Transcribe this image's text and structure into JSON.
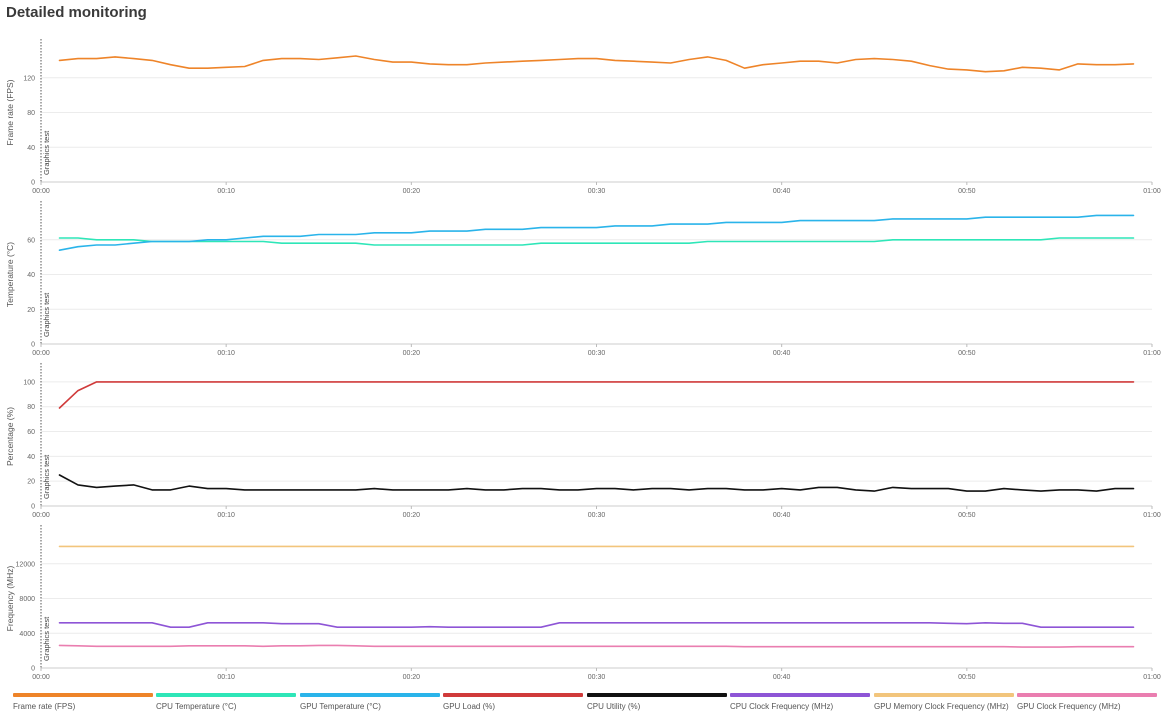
{
  "page": {
    "title": "Detailed monitoring"
  },
  "legend": [
    {
      "label": "Frame rate (FPS)",
      "color": "#ee8429"
    },
    {
      "label": "CPU Temperature (°C)",
      "color": "#2ee6b8"
    },
    {
      "label": "GPU Temperature (°C)",
      "color": "#2ab4ea"
    },
    {
      "label": "GPU Load (%)",
      "color": "#d03a3a"
    },
    {
      "label": "CPU Utility (%)",
      "color": "#111111"
    },
    {
      "label": "CPU Clock Frequency (MHz)",
      "color": "#8e55d6"
    },
    {
      "label": "GPU Memory Clock Frequency (MHz)",
      "color": "#f2c57c"
    },
    {
      "label": "GPU Clock Frequency (MHz)",
      "color": "#ea7eb0"
    }
  ],
  "chart_data": [
    {
      "type": "line",
      "title": "",
      "xlabel": "",
      "ylabel": "Frame rate (FPS)",
      "annotation": "Graphics test",
      "xlim": [
        0,
        60
      ],
      "ylim": [
        0,
        160
      ],
      "yticks": [
        0,
        40,
        80,
        120
      ],
      "xticks": [
        "00:00",
        "00:10",
        "00:20",
        "00:30",
        "00:40",
        "00:50",
        "01:00"
      ],
      "grid": true,
      "series": [
        {
          "color": "#ee8429",
          "x": [
            1,
            2,
            3,
            4,
            5,
            6,
            7,
            8,
            9,
            10,
            11,
            12,
            13,
            14,
            15,
            16,
            17,
            18,
            19,
            20,
            21,
            22,
            23,
            24,
            25,
            26,
            27,
            28,
            29,
            30,
            31,
            32,
            33,
            34,
            35,
            36,
            37,
            38,
            39,
            40,
            41,
            42,
            43,
            44,
            45,
            46,
            47,
            48,
            49,
            50,
            51,
            52,
            53,
            54,
            55,
            56,
            57,
            58,
            59
          ],
          "values": [
            140,
            142,
            142,
            144,
            142,
            140,
            135,
            131,
            131,
            132,
            133,
            140,
            142,
            142,
            141,
            143,
            145,
            141,
            138,
            138,
            136,
            135,
            135,
            137,
            138,
            139,
            140,
            141,
            142,
            142,
            140,
            139,
            138,
            137,
            141,
            144,
            140,
            131,
            135,
            137,
            139,
            139,
            137,
            141,
            142,
            141,
            139,
            134,
            130,
            129,
            127,
            128,
            132,
            131,
            129,
            136,
            135,
            135,
            136
          ]
        }
      ]
    },
    {
      "type": "line",
      "title": "",
      "xlabel": "",
      "ylabel": "Temperature (°C)",
      "annotation": "Graphics test",
      "xlim": [
        0,
        60
      ],
      "ylim": [
        0,
        80
      ],
      "yticks": [
        0,
        20,
        40,
        60
      ],
      "xticks": [
        "00:00",
        "00:10",
        "00:20",
        "00:30",
        "00:40",
        "00:50",
        "01:00"
      ],
      "grid": true,
      "series": [
        {
          "color": "#2ee6b8",
          "x": [
            1,
            2,
            3,
            4,
            5,
            6,
            7,
            8,
            9,
            10,
            11,
            12,
            13,
            14,
            15,
            16,
            17,
            18,
            19,
            20,
            21,
            22,
            23,
            24,
            25,
            26,
            27,
            28,
            29,
            30,
            31,
            32,
            33,
            34,
            35,
            36,
            37,
            38,
            39,
            40,
            41,
            42,
            43,
            44,
            45,
            46,
            47,
            48,
            49,
            50,
            51,
            52,
            53,
            54,
            55,
            56,
            57,
            58,
            59
          ],
          "values": [
            61,
            61,
            60,
            60,
            60,
            59,
            59,
            59,
            59,
            59,
            59,
            59,
            58,
            58,
            58,
            58,
            58,
            57,
            57,
            57,
            57,
            57,
            57,
            57,
            57,
            57,
            58,
            58,
            58,
            58,
            58,
            58,
            58,
            58,
            58,
            59,
            59,
            59,
            59,
            59,
            59,
            59,
            59,
            59,
            59,
            60,
            60,
            60,
            60,
            60,
            60,
            60,
            60,
            60,
            61,
            61,
            61,
            61,
            61
          ]
        },
        {
          "color": "#2ab4ea",
          "x": [
            1,
            2,
            3,
            4,
            5,
            6,
            7,
            8,
            9,
            10,
            11,
            12,
            13,
            14,
            15,
            16,
            17,
            18,
            19,
            20,
            21,
            22,
            23,
            24,
            25,
            26,
            27,
            28,
            29,
            30,
            31,
            32,
            33,
            34,
            35,
            36,
            37,
            38,
            39,
            40,
            41,
            42,
            43,
            44,
            45,
            46,
            47,
            48,
            49,
            50,
            51,
            52,
            53,
            54,
            55,
            56,
            57,
            58,
            59
          ],
          "values": [
            54,
            56,
            57,
            57,
            58,
            59,
            59,
            59,
            60,
            60,
            61,
            62,
            62,
            62,
            63,
            63,
            63,
            64,
            64,
            64,
            65,
            65,
            65,
            66,
            66,
            66,
            67,
            67,
            67,
            67,
            68,
            68,
            68,
            69,
            69,
            69,
            70,
            70,
            70,
            70,
            71,
            71,
            71,
            71,
            71,
            72,
            72,
            72,
            72,
            72,
            73,
            73,
            73,
            73,
            73,
            73,
            74,
            74,
            74
          ]
        }
      ]
    },
    {
      "type": "line",
      "title": "",
      "xlabel": "",
      "ylabel": "Percentage (%)",
      "annotation": "Graphics test",
      "xlim": [
        0,
        60
      ],
      "ylim": [
        0,
        112
      ],
      "yticks": [
        0,
        20,
        40,
        60,
        80,
        100
      ],
      "xticks": [
        "00:00",
        "00:10",
        "00:20",
        "00:30",
        "00:40",
        "00:50",
        "01:00"
      ],
      "grid": true,
      "series": [
        {
          "color": "#d03a3a",
          "x": [
            1,
            2,
            3,
            4,
            5,
            6,
            7,
            8,
            9,
            10,
            11,
            12,
            13,
            14,
            15,
            16,
            17,
            18,
            19,
            20,
            21,
            22,
            23,
            24,
            25,
            26,
            27,
            28,
            29,
            30,
            31,
            32,
            33,
            34,
            35,
            36,
            37,
            38,
            39,
            40,
            41,
            42,
            43,
            44,
            45,
            46,
            47,
            48,
            49,
            50,
            51,
            52,
            53,
            54,
            55,
            56,
            57,
            58,
            59
          ],
          "values": [
            79,
            93,
            100,
            100,
            100,
            100,
            100,
            100,
            100,
            100,
            100,
            100,
            100,
            100,
            100,
            100,
            100,
            100,
            100,
            100,
            100,
            100,
            100,
            100,
            100,
            100,
            100,
            100,
            100,
            100,
            100,
            100,
            100,
            100,
            100,
            100,
            100,
            100,
            100,
            100,
            100,
            100,
            100,
            100,
            100,
            100,
            100,
            100,
            100,
            100,
            100,
            100,
            100,
            100,
            100,
            100,
            100,
            100,
            100
          ]
        },
        {
          "color": "#111111",
          "x": [
            1,
            2,
            3,
            4,
            5,
            6,
            7,
            8,
            9,
            10,
            11,
            12,
            13,
            14,
            15,
            16,
            17,
            18,
            19,
            20,
            21,
            22,
            23,
            24,
            25,
            26,
            27,
            28,
            29,
            30,
            31,
            32,
            33,
            34,
            35,
            36,
            37,
            38,
            39,
            40,
            41,
            42,
            43,
            44,
            45,
            46,
            47,
            48,
            49,
            50,
            51,
            52,
            53,
            54,
            55,
            56,
            57,
            58,
            59
          ],
          "values": [
            25,
            17,
            15,
            16,
            17,
            13,
            13,
            16,
            14,
            14,
            13,
            13,
            13,
            13,
            13,
            13,
            13,
            14,
            13,
            13,
            13,
            13,
            14,
            13,
            13,
            14,
            14,
            13,
            13,
            14,
            14,
            13,
            14,
            14,
            13,
            14,
            14,
            13,
            13,
            14,
            13,
            15,
            15,
            13,
            12,
            15,
            14,
            14,
            14,
            12,
            12,
            14,
            13,
            12,
            13,
            13,
            12,
            14,
            14
          ]
        }
      ]
    },
    {
      "type": "line",
      "title": "",
      "xlabel": "",
      "ylabel": "Frequency (MHz)",
      "annotation": "Graphics test",
      "xlim": [
        0,
        60
      ],
      "ylim": [
        0,
        16000
      ],
      "yticks": [
        0,
        4000,
        8000,
        12000
      ],
      "xticks": [
        "00:00",
        "00:10",
        "00:20",
        "00:30",
        "00:40",
        "00:50",
        "01:00"
      ],
      "grid": true,
      "series": [
        {
          "color": "#f2c57c",
          "x": [
            1,
            59
          ],
          "values": [
            14000,
            14000
          ]
        },
        {
          "color": "#8e55d6",
          "x": [
            1,
            2,
            3,
            4,
            5,
            6,
            7,
            8,
            9,
            10,
            11,
            12,
            13,
            14,
            15,
            16,
            17,
            18,
            19,
            20,
            21,
            22,
            23,
            24,
            25,
            26,
            27,
            28,
            29,
            30,
            31,
            32,
            33,
            34,
            35,
            36,
            37,
            38,
            39,
            40,
            41,
            42,
            43,
            44,
            45,
            46,
            47,
            48,
            49,
            50,
            51,
            52,
            53,
            54,
            55,
            56,
            57,
            58,
            59
          ],
          "values": [
            5200,
            5200,
            5200,
            5200,
            5200,
            5200,
            4700,
            4700,
            5200,
            5200,
            5200,
            5200,
            5100,
            5100,
            5100,
            4700,
            4700,
            4700,
            4700,
            4700,
            4750,
            4700,
            4700,
            4700,
            4700,
            4700,
            4700,
            5200,
            5200,
            5200,
            5200,
            5200,
            5200,
            5200,
            5200,
            5200,
            5200,
            5200,
            5200,
            5200,
            5200,
            5200,
            5200,
            5200,
            5200,
            5200,
            5200,
            5200,
            5150,
            5100,
            5200,
            5150,
            5150,
            4700,
            4700,
            4700,
            4700,
            4700,
            4700
          ]
        },
        {
          "color": "#ea7eb0",
          "x": [
            1,
            2,
            3,
            4,
            5,
            6,
            7,
            8,
            9,
            10,
            11,
            12,
            13,
            14,
            15,
            16,
            17,
            18,
            19,
            20,
            21,
            22,
            23,
            24,
            25,
            26,
            27,
            28,
            29,
            30,
            31,
            32,
            33,
            34,
            35,
            36,
            37,
            38,
            39,
            40,
            41,
            42,
            43,
            44,
            45,
            46,
            47,
            48,
            49,
            50,
            51,
            52,
            53,
            54,
            55,
            56,
            57,
            58,
            59
          ],
          "values": [
            2600,
            2550,
            2500,
            2500,
            2500,
            2500,
            2500,
            2550,
            2550,
            2550,
            2550,
            2500,
            2550,
            2550,
            2600,
            2600,
            2550,
            2500,
            2500,
            2500,
            2500,
            2500,
            2500,
            2500,
            2500,
            2500,
            2500,
            2500,
            2500,
            2500,
            2500,
            2500,
            2500,
            2500,
            2500,
            2500,
            2500,
            2450,
            2450,
            2450,
            2450,
            2450,
            2450,
            2450,
            2450,
            2450,
            2450,
            2450,
            2450,
            2450,
            2450,
            2450,
            2400,
            2400,
            2400,
            2450,
            2450,
            2450,
            2450
          ]
        }
      ]
    }
  ]
}
